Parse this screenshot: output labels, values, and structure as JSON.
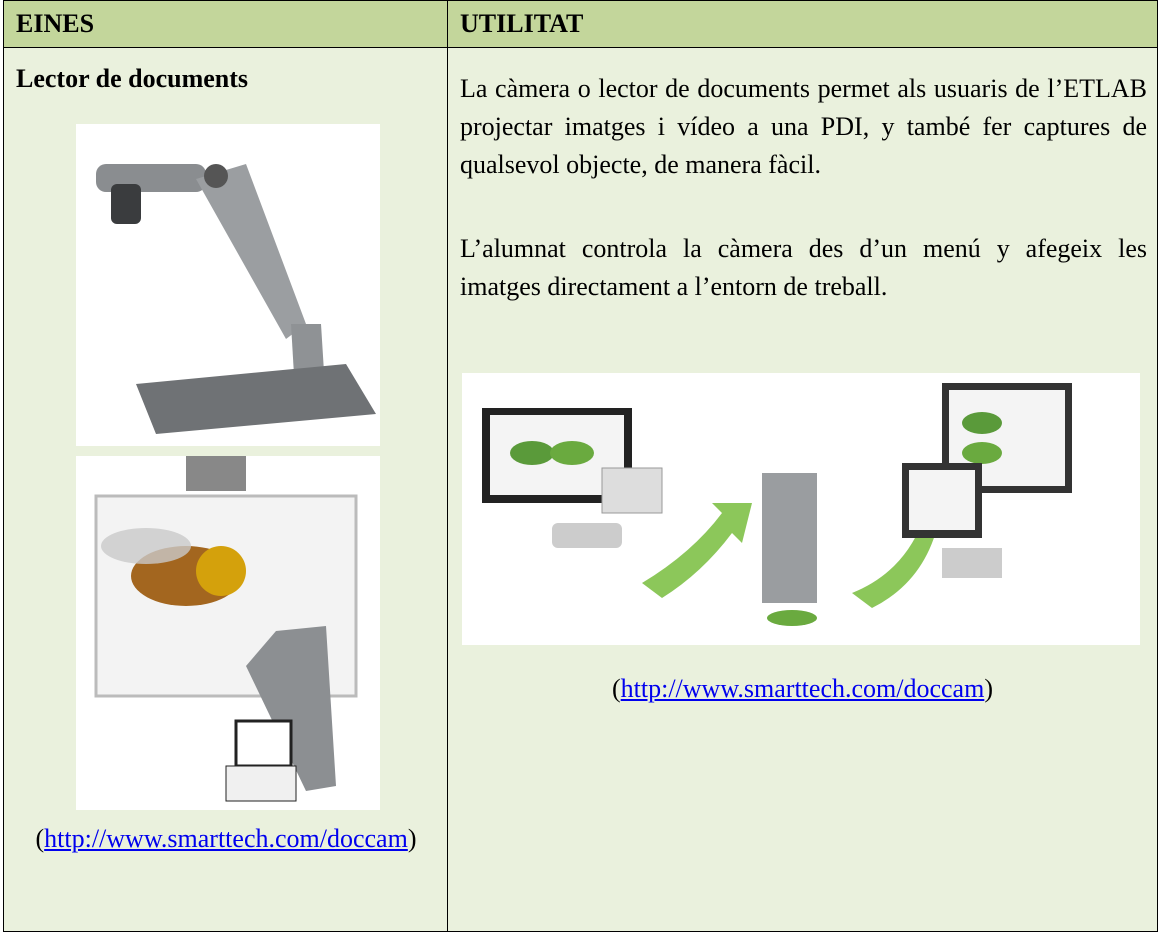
{
  "table": {
    "header": [
      "EINES",
      "UTILITAT"
    ],
    "left": {
      "title": "Lector de documents",
      "source": {
        "open": "(",
        "url": "http://www.smarttech.com/doccam",
        "close": ")"
      }
    },
    "right": {
      "paragraphs": [
        "La càmera o lector de documents permet als usuaris de l’ETLAB projectar imatges i vídeo a una PDI, y també fer captures de qualsevol objecte, de manera fàcil.",
        "L’alumnat controla la càmera des d’un menú y afegeix les imatges directament a l’entorn de treball."
      ],
      "source": {
        "open": "(",
        "url": "http://www.smarttech.com/doccam",
        "close": ")"
      }
    }
  }
}
